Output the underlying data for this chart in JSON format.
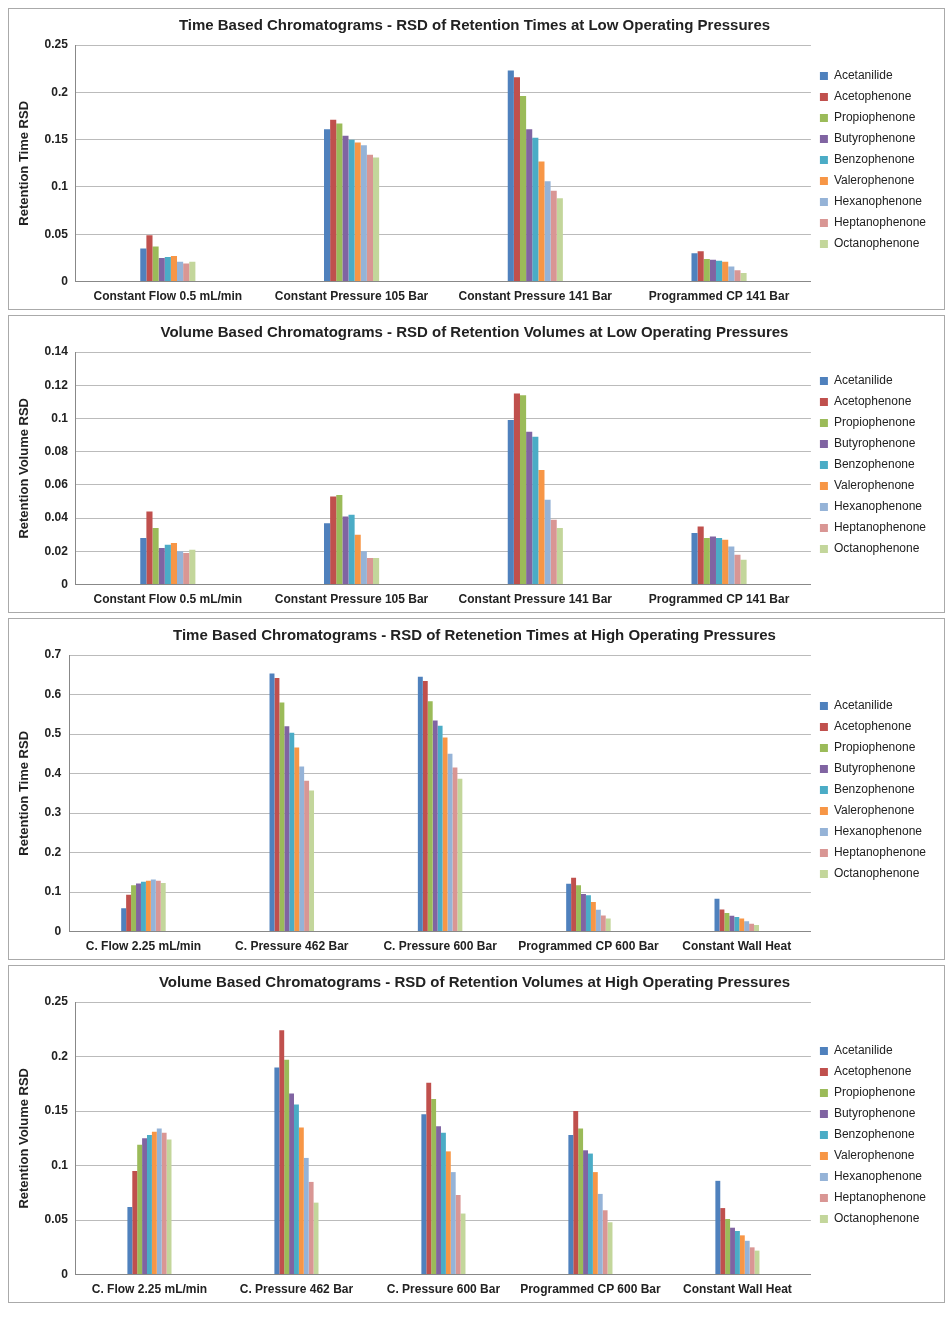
{
  "chart_data": [
    {
      "type": "bar",
      "title": "Time Based Chromatograms - RSD of Retention Times at Low Operating Pressures",
      "ylabel": "Retention Time RSD",
      "categories": [
        "Constant Flow 0.5 mL/min",
        "Constant Pressure 105 Bar",
        "Constant Pressure 141 Bar",
        "Programmed CP 141 Bar"
      ],
      "ylim": [
        0,
        0.25
      ],
      "yticks": [
        0,
        0.05,
        0.1,
        0.15,
        0.2,
        0.25
      ],
      "grid": "y",
      "legend": "right",
      "series": [
        {
          "name": "Acetanilide",
          "color": "#4f81bd",
          "values": [
            0.035,
            0.161,
            0.223,
            0.03
          ]
        },
        {
          "name": "Acetophenone",
          "color": "#c0504d",
          "values": [
            0.049,
            0.171,
            0.216,
            0.032
          ]
        },
        {
          "name": "Propiophenone",
          "color": "#9bbb59",
          "values": [
            0.037,
            0.167,
            0.196,
            0.024
          ]
        },
        {
          "name": "Butyrophenone",
          "color": "#8064a2",
          "values": [
            0.025,
            0.154,
            0.161,
            0.023
          ]
        },
        {
          "name": "Benzophenone",
          "color": "#4bacc6",
          "values": [
            0.026,
            0.15,
            0.152,
            0.022
          ]
        },
        {
          "name": "Valerophenone",
          "color": "#f79646",
          "values": [
            0.027,
            0.147,
            0.127,
            0.021
          ]
        },
        {
          "name": "Hexanophenone",
          "color": "#95b3d7",
          "values": [
            0.021,
            0.144,
            0.106,
            0.016
          ]
        },
        {
          "name": "Heptanophenone",
          "color": "#d99694",
          "values": [
            0.019,
            0.134,
            0.096,
            0.012
          ]
        },
        {
          "name": "Octanophenone",
          "color": "#c3d69b",
          "values": [
            0.021,
            0.131,
            0.088,
            0.009
          ]
        }
      ]
    },
    {
      "type": "bar",
      "title": "Volume Based Chromatograms - RSD of Retention Volumes at Low Operating Pressures",
      "ylabel": "Retention Volume RSD",
      "categories": [
        "Constant Flow 0.5 mL/min",
        "Constant Pressure 105 Bar",
        "Constant Pressure 141 Bar",
        "Programmed CP 141 Bar"
      ],
      "ylim": [
        0,
        0.14
      ],
      "yticks": [
        0,
        0.02,
        0.04,
        0.06,
        0.08,
        0.1,
        0.12,
        0.14
      ],
      "grid": "y",
      "legend": "right",
      "series": [
        {
          "name": "Acetanilide",
          "color": "#4f81bd",
          "values": [
            0.028,
            0.037,
            0.099,
            0.031
          ]
        },
        {
          "name": "Acetophenone",
          "color": "#c0504d",
          "values": [
            0.044,
            0.053,
            0.115,
            0.035
          ]
        },
        {
          "name": "Propiophenone",
          "color": "#9bbb59",
          "values": [
            0.034,
            0.054,
            0.114,
            0.028
          ]
        },
        {
          "name": "Butyrophenone",
          "color": "#8064a2",
          "values": [
            0.022,
            0.041,
            0.092,
            0.029
          ]
        },
        {
          "name": "Benzophenone",
          "color": "#4bacc6",
          "values": [
            0.024,
            0.042,
            0.089,
            0.028
          ]
        },
        {
          "name": "Valerophenone",
          "color": "#f79646",
          "values": [
            0.025,
            0.03,
            0.069,
            0.027
          ]
        },
        {
          "name": "Hexanophenone",
          "color": "#95b3d7",
          "values": [
            0.02,
            0.02,
            0.051,
            0.023
          ]
        },
        {
          "name": "Heptanophenone",
          "color": "#d99694",
          "values": [
            0.019,
            0.016,
            0.039,
            0.018
          ]
        },
        {
          "name": "Octanophenone",
          "color": "#c3d69b",
          "values": [
            0.021,
            0.016,
            0.034,
            0.015
          ]
        }
      ]
    },
    {
      "type": "bar",
      "title": "Time Based Chromatograms - RSD of Retenetion Times at High Operating Pressures",
      "ylabel": "Retention Time RSD",
      "categories": [
        "C. Flow 2.25 mL/min",
        "C. Pressure 462 Bar",
        "C. Pressure 600 Bar",
        "Programmed CP 600 Bar",
        "Constant Wall Heat"
      ],
      "ylim": [
        0,
        0.7
      ],
      "yticks": [
        0,
        0.1,
        0.2,
        0.3,
        0.4,
        0.5,
        0.6,
        0.7
      ],
      "grid": "y",
      "legend": "right",
      "series": [
        {
          "name": "Acetanilide",
          "color": "#4f81bd",
          "values": [
            0.059,
            0.653,
            0.645,
            0.121,
            0.083
          ]
        },
        {
          "name": "Acetophenone",
          "color": "#c0504d",
          "values": [
            0.093,
            0.642,
            0.634,
            0.136,
            0.056
          ]
        },
        {
          "name": "Propiophenone",
          "color": "#9bbb59",
          "values": [
            0.117,
            0.58,
            0.583,
            0.117,
            0.047
          ]
        },
        {
          "name": "Butyrophenone",
          "color": "#8064a2",
          "values": [
            0.122,
            0.52,
            0.534,
            0.095,
            0.04
          ]
        },
        {
          "name": "Benzophenone",
          "color": "#4bacc6",
          "values": [
            0.126,
            0.503,
            0.521,
            0.092,
            0.037
          ]
        },
        {
          "name": "Valerophenone",
          "color": "#f79646",
          "values": [
            0.129,
            0.466,
            0.491,
            0.075,
            0.033
          ]
        },
        {
          "name": "Hexanophenone",
          "color": "#95b3d7",
          "values": [
            0.132,
            0.418,
            0.45,
            0.055,
            0.026
          ]
        },
        {
          "name": "Heptanophenone",
          "color": "#d99694",
          "values": [
            0.129,
            0.382,
            0.415,
            0.041,
            0.02
          ]
        },
        {
          "name": "Octanophenone",
          "color": "#c3d69b",
          "values": [
            0.123,
            0.357,
            0.387,
            0.033,
            0.017
          ]
        }
      ]
    },
    {
      "type": "bar",
      "title": "Volume Based Chromatograms - RSD of Retention Volumes at High Operating Pressures",
      "ylabel": "Retention Volume RSD",
      "categories": [
        "C. Flow 2.25 mL/min",
        "C. Pressure 462 Bar",
        "C. Pressure 600 Bar",
        "Programmed CP 600 Bar",
        "Constant Wall Heat"
      ],
      "ylim": [
        0,
        0.25
      ],
      "yticks": [
        0,
        0.05,
        0.1,
        0.15,
        0.2,
        0.25
      ],
      "grid": "y",
      "legend": "right",
      "series": [
        {
          "name": "Acetanilide",
          "color": "#4f81bd",
          "values": [
            0.062,
            0.19,
            0.147,
            0.128,
            0.086
          ]
        },
        {
          "name": "Acetophenone",
          "color": "#c0504d",
          "values": [
            0.095,
            0.224,
            0.176,
            0.15,
            0.061
          ]
        },
        {
          "name": "Propiophenone",
          "color": "#9bbb59",
          "values": [
            0.119,
            0.197,
            0.161,
            0.134,
            0.051
          ]
        },
        {
          "name": "Butyrophenone",
          "color": "#8064a2",
          "values": [
            0.125,
            0.166,
            0.136,
            0.114,
            0.043
          ]
        },
        {
          "name": "Benzophenone",
          "color": "#4bacc6",
          "values": [
            0.128,
            0.156,
            0.13,
            0.111,
            0.04
          ]
        },
        {
          "name": "Valerophenone",
          "color": "#f79646",
          "values": [
            0.131,
            0.135,
            0.113,
            0.094,
            0.036
          ]
        },
        {
          "name": "Hexanophenone",
          "color": "#95b3d7",
          "values": [
            0.134,
            0.107,
            0.094,
            0.074,
            0.031
          ]
        },
        {
          "name": "Heptanophenone",
          "color": "#d99694",
          "values": [
            0.13,
            0.085,
            0.073,
            0.059,
            0.025
          ]
        },
        {
          "name": "Octanophenone",
          "color": "#c3d69b",
          "values": [
            0.124,
            0.066,
            0.056,
            0.048,
            0.022
          ]
        }
      ]
    }
  ]
}
